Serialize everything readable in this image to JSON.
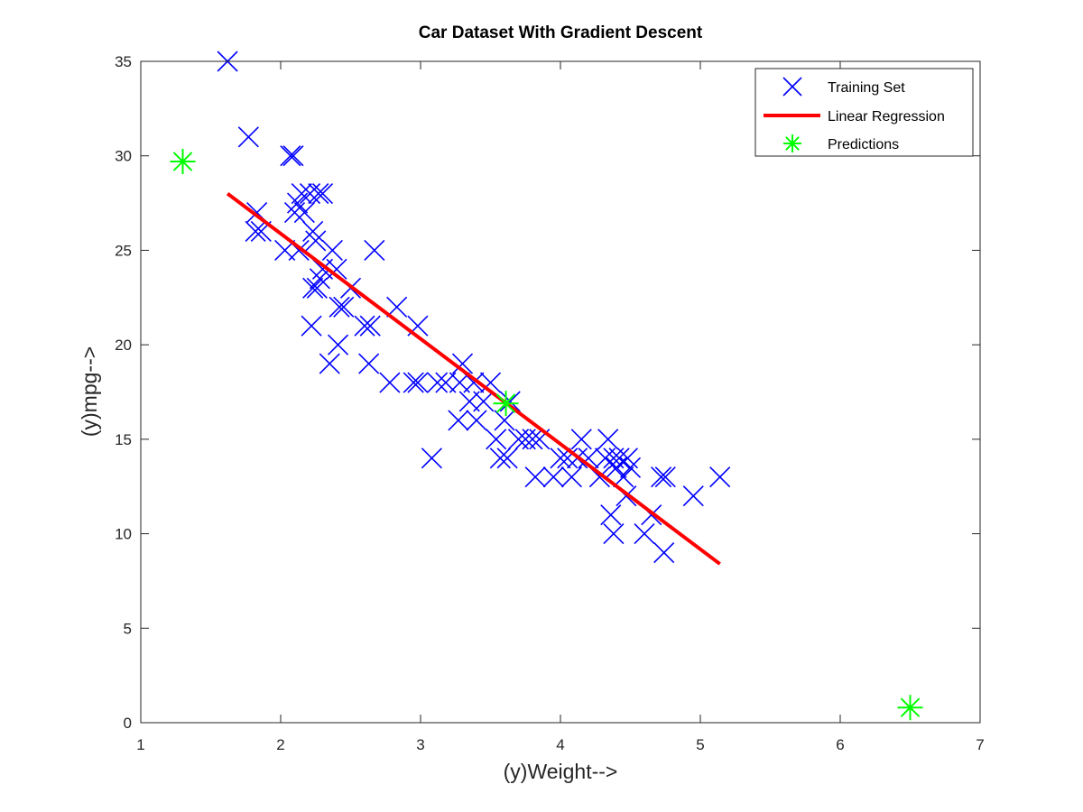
{
  "chart_data": {
    "type": "scatter",
    "title": "Car Dataset With Gradient Descent",
    "xlabel": "(y)Weight-->",
    "ylabel": "(y)mpg-->",
    "xlim": [
      1,
      7
    ],
    "ylim": [
      0,
      35
    ],
    "xticks": [
      "1",
      "2",
      "3",
      "4",
      "5",
      "6",
      "7"
    ],
    "yticks": [
      "0",
      "5",
      "10",
      "15",
      "20",
      "25",
      "30",
      "35"
    ],
    "grid": false,
    "legend_position": "top-right",
    "series": [
      {
        "name": "Training Set",
        "marker": "x",
        "color": "#0000ff",
        "points": [
          [
            1.62,
            35
          ],
          [
            1.77,
            31
          ],
          [
            2.07,
            30
          ],
          [
            2.09,
            30
          ],
          [
            1.83,
            27
          ],
          [
            1.82,
            26
          ],
          [
            1.86,
            26
          ],
          [
            2.03,
            25
          ],
          [
            2.13,
            25
          ],
          [
            2.1,
            27
          ],
          [
            2.12,
            27.5
          ],
          [
            2.15,
            28
          ],
          [
            2.21,
            28
          ],
          [
            2.27,
            28
          ],
          [
            2.3,
            28
          ],
          [
            2.17,
            27
          ],
          [
            2.23,
            26
          ],
          [
            2.25,
            25.5
          ],
          [
            2.3,
            24
          ],
          [
            2.37,
            25
          ],
          [
            2.4,
            24
          ],
          [
            2.28,
            23.5
          ],
          [
            2.23,
            23
          ],
          [
            2.26,
            23
          ],
          [
            2.45,
            22
          ],
          [
            2.5,
            23
          ],
          [
            2.42,
            22
          ],
          [
            2.22,
            21
          ],
          [
            2.6,
            21
          ],
          [
            2.64,
            21
          ],
          [
            2.67,
            25
          ],
          [
            2.35,
            19
          ],
          [
            2.41,
            20
          ],
          [
            2.63,
            19
          ],
          [
            2.78,
            18
          ],
          [
            2.83,
            22
          ],
          [
            2.95,
            18
          ],
          [
            2.98,
            18
          ],
          [
            2.98,
            21
          ],
          [
            3.12,
            18
          ],
          [
            3.18,
            18
          ],
          [
            3.3,
            19
          ],
          [
            3.28,
            18
          ],
          [
            3.35,
            17
          ],
          [
            3.38,
            18
          ],
          [
            3.5,
            18
          ],
          [
            3.27,
            16
          ],
          [
            3.4,
            16
          ],
          [
            3.45,
            17
          ],
          [
            3.54,
            15
          ],
          [
            3.6,
            16
          ],
          [
            3.64,
            17
          ],
          [
            3.08,
            14
          ],
          [
            3.57,
            14
          ],
          [
            3.62,
            14
          ],
          [
            3.7,
            15
          ],
          [
            3.75,
            15
          ],
          [
            3.8,
            15
          ],
          [
            3.85,
            15
          ],
          [
            3.82,
            13
          ],
          [
            3.95,
            13
          ],
          [
            4.0,
            14
          ],
          [
            4.05,
            14
          ],
          [
            4.08,
            13
          ],
          [
            4.12,
            14
          ],
          [
            4.15,
            15
          ],
          [
            4.2,
            14
          ],
          [
            4.28,
            13
          ],
          [
            4.32,
            14
          ],
          [
            4.34,
            15
          ],
          [
            4.38,
            14
          ],
          [
            4.4,
            13.5
          ],
          [
            4.42,
            14
          ],
          [
            4.45,
            13
          ],
          [
            4.48,
            14
          ],
          [
            4.5,
            13.5
          ],
          [
            4.47,
            12
          ],
          [
            4.36,
            11
          ],
          [
            4.38,
            10
          ],
          [
            4.6,
            10
          ],
          [
            4.65,
            11
          ],
          [
            4.74,
            9
          ],
          [
            4.72,
            13
          ],
          [
            4.75,
            13
          ],
          [
            4.95,
            12
          ],
          [
            5.14,
            13
          ]
        ]
      },
      {
        "name": "Linear Regression",
        "marker": "line",
        "color": "#ff0000",
        "points": [
          [
            1.62,
            28.0
          ],
          [
            5.14,
            8.4
          ]
        ]
      },
      {
        "name": "Predictions",
        "marker": "asterisk",
        "color": "#00ff00",
        "points": [
          [
            1.3,
            29.7
          ],
          [
            3.61,
            16.9
          ],
          [
            6.5,
            0.8
          ]
        ]
      }
    ]
  }
}
